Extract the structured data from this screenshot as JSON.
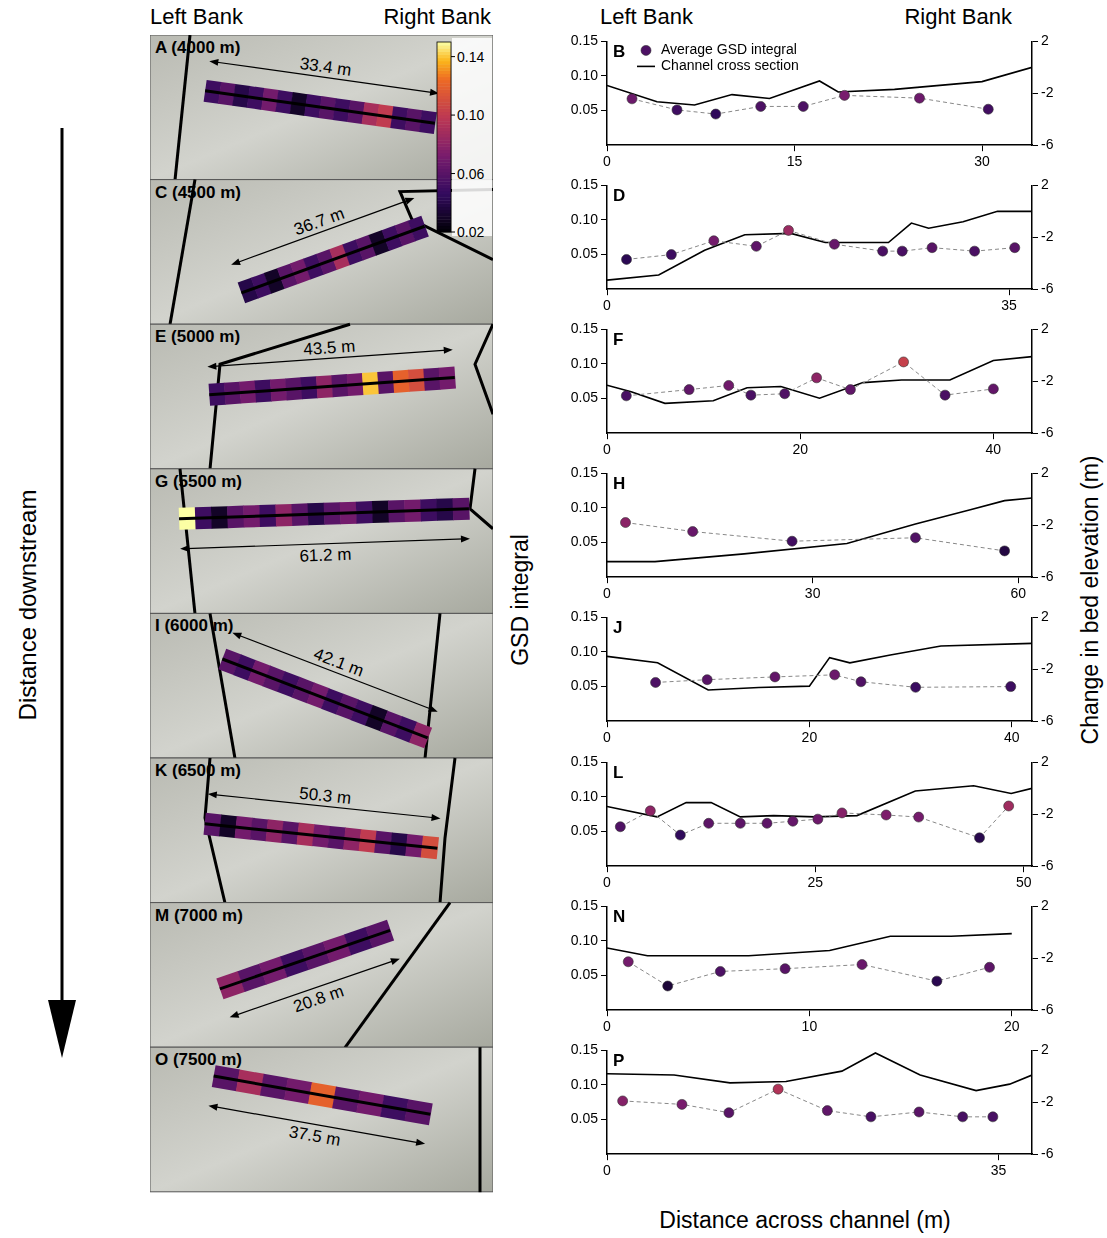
{
  "headers": {
    "left": "Left Bank",
    "right": "Right Bank"
  },
  "downstream_label": "Distance downstream",
  "axis_titles": {
    "x": "Distance across channel (m)",
    "y": "GSD integral",
    "y2": "Change in bed elevation (m)"
  },
  "colorbar": {
    "range": [
      0.02,
      0.15
    ],
    "ticks": [
      0.02,
      0.06,
      {
        "value": 0.1,
        "label": "0.10"
      },
      0.14
    ]
  },
  "site_panels": [
    {
      "label": "A (4000 m)",
      "width_label": "33.4 m",
      "cells": [
        0.05,
        0.06,
        0.04,
        0.05,
        0.07,
        0.05,
        0.03,
        0.05,
        0.06,
        0.05,
        0.06,
        0.09,
        0.1,
        0.05,
        0.06,
        0.05
      ]
    },
    {
      "label": "C (4500 m)",
      "width_label": "36.7 m",
      "cells": [
        0.04,
        0.05,
        0.03,
        0.06,
        0.07,
        0.05,
        0.06,
        0.09,
        0.05,
        0.06,
        0.03,
        0.05,
        0.06,
        0.05
      ]
    },
    {
      "label": "E (5000 m)",
      "width_label": "43.5 m",
      "cells": [
        0.05,
        0.06,
        0.07,
        0.05,
        0.07,
        0.06,
        0.05,
        0.08,
        0.06,
        0.07,
        0.14,
        0.06,
        0.12,
        0.11,
        0.06,
        0.07
      ]
    },
    {
      "label": "G (5500 m)",
      "width_label": "61.2 m",
      "cells": [
        0.15,
        0.05,
        0.03,
        0.06,
        0.07,
        0.05,
        0.08,
        0.06,
        0.04,
        0.06,
        0.07,
        0.05,
        0.03,
        0.06,
        0.07,
        0.05,
        0.04,
        0.06
      ]
    },
    {
      "label": "I (6000 m)",
      "width_label": "42.1 m",
      "cells": [
        0.06,
        0.05,
        0.07,
        0.06,
        0.05,
        0.06,
        0.07,
        0.05,
        0.06,
        0.05,
        0.03,
        0.06,
        0.05,
        0.08
      ]
    },
    {
      "label": "K (6500 m)",
      "width_label": "50.3 m",
      "cells": [
        0.06,
        0.03,
        0.07,
        0.06,
        0.08,
        0.06,
        0.09,
        0.07,
        0.06,
        0.08,
        0.1,
        0.06,
        0.04,
        0.07,
        0.11
      ]
    },
    {
      "label": "M (7000 m)",
      "width_label": "20.8 m",
      "cells": [
        0.08,
        0.06,
        0.07,
        0.05,
        0.06,
        0.07,
        0.05,
        0.06
      ]
    },
    {
      "label": "O (7500 m)",
      "width_label": "37.5 m",
      "cells": [
        0.06,
        0.09,
        0.06,
        0.07,
        0.12,
        0.06,
        0.07,
        0.05,
        0.06
      ]
    }
  ],
  "chart_data": [
    {
      "type": "scatter",
      "title": "B",
      "legend": "upper left",
      "grid": false,
      "xlim": [
        0,
        34
      ],
      "xticks": [
        0,
        15,
        30
      ],
      "ylim": [
        0,
        0.15
      ],
      "yticks": [
        0.05,
        {
          "value": 0.1,
          "label": "0.10"
        },
        0.15
      ],
      "y2lim": [
        -6,
        2
      ],
      "y2ticks": [
        -6,
        -2,
        2
      ],
      "series": [
        {
          "name": "Average GSD integral",
          "type": "scatter",
          "marker": "circle",
          "line_style": "dashed",
          "color": "#888888",
          "x": [
            2,
            5.6,
            8.7,
            12.3,
            15.7,
            19,
            25,
            30.5
          ],
          "values": [
            0.067,
            0.051,
            0.045,
            0.056,
            0.056,
            0.072,
            0.068,
            0.052
          ]
        },
        {
          "name": "Channel cross section",
          "type": "line",
          "axis": "y2",
          "line_style": "solid",
          "color": "#000000",
          "x": [
            0,
            4,
            7,
            10,
            13,
            17,
            18.5,
            23,
            30,
            34
          ],
          "values": [
            -1.4,
            -2.65,
            -2.9,
            -2.1,
            -2.4,
            -1.05,
            -1.9,
            -1.7,
            -1.1,
            0.0
          ]
        }
      ]
    },
    {
      "type": "scatter",
      "title": "D",
      "grid": false,
      "xlim": [
        0,
        37
      ],
      "xticks": [
        0,
        35
      ],
      "ylim": [
        0,
        0.15
      ],
      "yticks": [
        0.05,
        {
          "value": 0.1,
          "label": "0.10"
        },
        0.15
      ],
      "y2lim": [
        -6,
        2
      ],
      "y2ticks": [
        -6,
        -2,
        2
      ],
      "series": [
        {
          "type": "scatter",
          "marker": "circle",
          "line_style": "dashed",
          "color": "#888888",
          "x": [
            1.7,
            5.6,
            9.3,
            13,
            15.8,
            19.8,
            24,
            25.7,
            28.3,
            32,
            35.5
          ],
          "values": [
            0.043,
            0.05,
            0.07,
            0.062,
            0.085,
            0.065,
            0.055,
            0.055,
            0.06,
            0.055,
            0.06
          ]
        },
        {
          "type": "line",
          "axis": "y2",
          "line_style": "solid",
          "color": "#000000",
          "x": [
            0,
            4.5,
            8.5,
            12,
            16,
            19,
            24.5,
            26.5,
            28,
            31,
            34,
            37
          ],
          "values": [
            -5.3,
            -4.9,
            -3.0,
            -1.8,
            -1.7,
            -2.4,
            -2.4,
            -0.9,
            -1.3,
            -0.8,
            0.0,
            0.0
          ]
        }
      ]
    },
    {
      "type": "scatter",
      "title": "F",
      "grid": false,
      "xlim": [
        0,
        44
      ],
      "xticks": [
        0,
        20,
        40
      ],
      "ylim": [
        0,
        0.15
      ],
      "yticks": [
        0.05,
        {
          "value": 0.1,
          "label": "0.10"
        },
        0.15
      ],
      "y2lim": [
        -6,
        2
      ],
      "y2ticks": [
        -6,
        -2,
        2
      ],
      "series": [
        {
          "type": "scatter",
          "marker": "circle",
          "line_style": "dashed",
          "color": "#888888",
          "x": [
            2,
            8.5,
            12.6,
            14.9,
            18.4,
            21.7,
            25.2,
            30.7,
            35,
            40
          ],
          "values": [
            0.054,
            0.063,
            0.069,
            0.055,
            0.057,
            0.08,
            0.063,
            0.103,
            0.055,
            0.064
          ]
        },
        {
          "type": "line",
          "axis": "y2",
          "line_style": "solid",
          "color": "#000000",
          "x": [
            0,
            2.5,
            6,
            11,
            14.5,
            18,
            22,
            26.5,
            30.5,
            35.5,
            40,
            44
          ],
          "values": [
            -2.3,
            -2.8,
            -3.7,
            -3.5,
            -2.5,
            -2.4,
            -3.3,
            -2.1,
            -1.9,
            -1.9,
            -0.4,
            -0.1
          ]
        }
      ]
    },
    {
      "type": "scatter",
      "title": "H",
      "grid": false,
      "xlim": [
        0,
        62
      ],
      "xticks": [
        0,
        30,
        60
      ],
      "ylim": [
        0,
        0.15
      ],
      "yticks": [
        0.05,
        {
          "value": 0.1,
          "label": "0.10"
        },
        0.15
      ],
      "y2lim": [
        -6,
        2
      ],
      "y2ticks": [
        -6,
        -2,
        2
      ],
      "series": [
        {
          "type": "scatter",
          "marker": "circle",
          "line_style": "dashed",
          "color": "#888888",
          "x": [
            2.7,
            12.5,
            27,
            45,
            58
          ],
          "values": [
            0.079,
            0.066,
            0.052,
            0.057,
            0.038
          ]
        },
        {
          "type": "line",
          "axis": "y2",
          "line_style": "solid",
          "color": "#000000",
          "x": [
            0,
            7,
            20,
            35,
            45,
            53,
            58,
            62
          ],
          "values": [
            -4.8,
            -4.8,
            -4.2,
            -3.4,
            -1.9,
            -0.8,
            -0.1,
            0.1
          ]
        }
      ]
    },
    {
      "type": "scatter",
      "title": "J",
      "grid": false,
      "xlim": [
        0,
        42
      ],
      "xticks": [
        0,
        20,
        40
      ],
      "ylim": [
        0,
        0.15
      ],
      "yticks": [
        0.05,
        {
          "value": 0.1,
          "label": "0.10"
        },
        0.15
      ],
      "y2lim": [
        -6,
        2
      ],
      "y2ticks": [
        -6,
        -2,
        2
      ],
      "series": [
        {
          "type": "scatter",
          "marker": "circle",
          "line_style": "dashed",
          "color": "#888888",
          "x": [
            4.8,
            9.9,
            16.6,
            22.5,
            25.1,
            30.5,
            39.9
          ],
          "values": [
            0.056,
            0.06,
            0.064,
            0.067,
            0.057,
            0.049,
            0.05
          ]
        },
        {
          "type": "line",
          "axis": "y2",
          "line_style": "solid",
          "color": "#000000",
          "x": [
            0,
            5,
            10,
            15,
            20,
            22,
            24,
            28,
            33,
            42
          ],
          "values": [
            -1.0,
            -1.5,
            -3.6,
            -3.4,
            -3.3,
            -1.1,
            -1.5,
            -0.9,
            -0.2,
            0.0
          ]
        }
      ]
    },
    {
      "type": "scatter",
      "title": "L",
      "grid": false,
      "xlim": [
        0,
        51
      ],
      "xticks": [
        0,
        25,
        50
      ],
      "ylim": [
        0,
        0.15
      ],
      "yticks": [
        0.05,
        {
          "value": 0.1,
          "label": "0.10"
        },
        0.15
      ],
      "y2lim": [
        -6,
        2
      ],
      "y2ticks": [
        -6,
        -2,
        2
      ],
      "series": [
        {
          "type": "scatter",
          "marker": "circle",
          "line_style": "dashed",
          "color": "#888888",
          "x": [
            1.6,
            5.2,
            8.8,
            12.2,
            16,
            19.2,
            22.3,
            25.3,
            28.2,
            33.5,
            37.4,
            44.7,
            48.2
          ],
          "values": [
            0.057,
            0.08,
            0.045,
            0.062,
            0.062,
            0.062,
            0.065,
            0.068,
            0.077,
            0.074,
            0.071,
            0.041,
            0.087
          ]
        },
        {
          "type": "line",
          "axis": "y2",
          "line_style": "solid",
          "color": "#000000",
          "x": [
            0,
            6,
            9.5,
            12.5,
            16,
            20,
            25,
            30,
            37,
            44,
            48.5,
            51
          ],
          "values": [
            -1.4,
            -2.2,
            -1.1,
            -1.1,
            -2.2,
            -2.1,
            -2.2,
            -2.1,
            -0.2,
            0.2,
            -0.4,
            0.0
          ]
        }
      ]
    },
    {
      "type": "scatter",
      "title": "N",
      "grid": false,
      "xlim": [
        0,
        21
      ],
      "xticks": [
        0,
        10,
        20
      ],
      "ylim": [
        0,
        0.15
      ],
      "yticks": [
        0.05,
        {
          "value": 0.1,
          "label": "0.10"
        },
        0.15
      ],
      "y2lim": [
        -6,
        2
      ],
      "y2ticks": [
        -6,
        -2,
        2
      ],
      "series": [
        {
          "type": "scatter",
          "marker": "circle",
          "line_style": "dashed",
          "color": "#888888",
          "x": [
            1.05,
            3.0,
            5.6,
            8.8,
            12.6,
            16.3,
            18.9
          ],
          "values": [
            0.07,
            0.035,
            0.056,
            0.06,
            0.066,
            0.042,
            0.062
          ]
        },
        {
          "type": "line",
          "axis": "y2",
          "line_style": "solid",
          "color": "#000000",
          "x": [
            0,
            2,
            7,
            11,
            14,
            17,
            20
          ],
          "values": [
            -1.2,
            -1.8,
            -1.8,
            -1.4,
            -0.3,
            -0.3,
            -0.1
          ]
        }
      ]
    },
    {
      "type": "scatter",
      "title": "P",
      "grid": false,
      "xlim": [
        0,
        38
      ],
      "xticks": [
        0,
        35
      ],
      "ylim": [
        0,
        0.15
      ],
      "yticks": [
        0.05,
        {
          "value": 0.1,
          "label": "0.10"
        },
        0.15
      ],
      "y2lim": [
        -6,
        2
      ],
      "y2ticks": [
        -6,
        -2,
        2
      ],
      "series": [
        {
          "type": "scatter",
          "marker": "circle",
          "line_style": "dashed",
          "color": "#888888",
          "x": [
            1.4,
            6.7,
            10.9,
            15.3,
            19.7,
            23.6,
            27.9,
            31.8,
            34.5
          ],
          "values": [
            0.077,
            0.072,
            0.06,
            0.094,
            0.063,
            0.054,
            0.061,
            0.054,
            0.054
          ]
        },
        {
          "type": "line",
          "axis": "y2",
          "line_style": "solid",
          "color": "#000000",
          "x": [
            0,
            6,
            11,
            16,
            21,
            24,
            28,
            33,
            36,
            38
          ],
          "values": [
            0.2,
            0.1,
            -0.5,
            -0.4,
            0.4,
            1.8,
            0.1,
            -1.1,
            -0.6,
            0.1
          ]
        }
      ]
    }
  ]
}
